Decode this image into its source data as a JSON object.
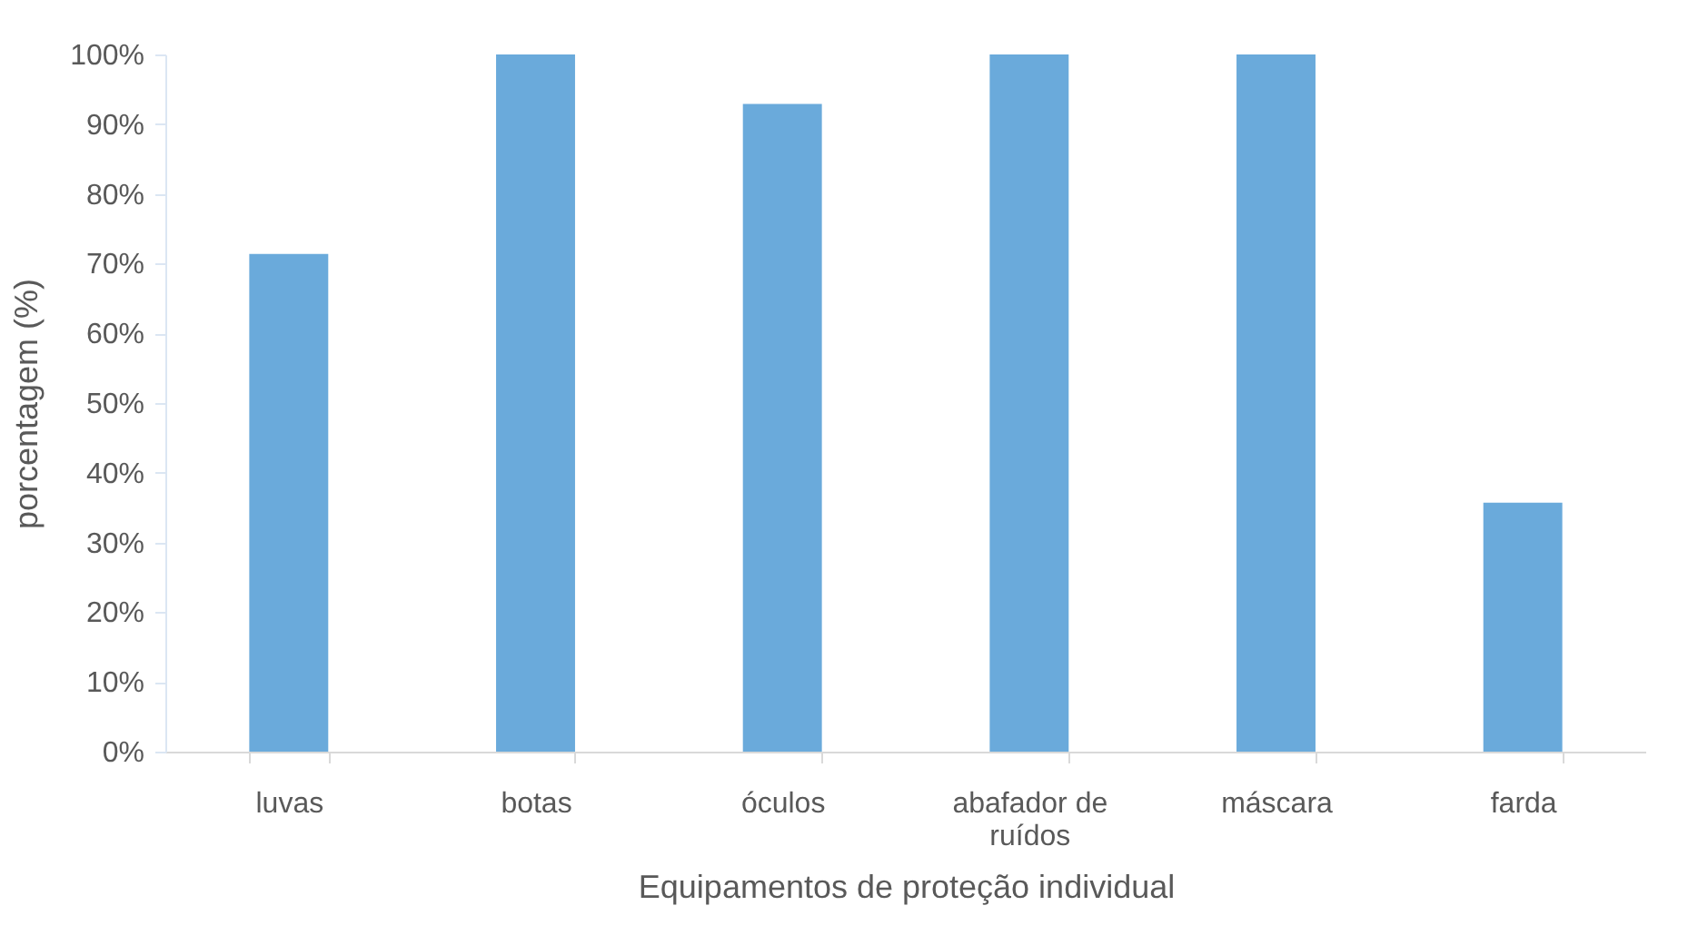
{
  "chart_data": {
    "type": "bar",
    "xlabel": "Equipamentos de proteção individual",
    "ylabel": "porcentagem  (%)",
    "categories": [
      "luvas",
      "botas",
      "óculos",
      "abafador de ruídos",
      "máscara",
      "farda",
      null
    ],
    "values": [
      71.4,
      100,
      92.9,
      100,
      100,
      35.7,
      null
    ],
    "color": "#6aaadb",
    "ylim": [
      0,
      100
    ],
    "yticks": [
      {
        "value": 0,
        "label": "0%"
      },
      {
        "value": 10,
        "label": "10%"
      },
      {
        "value": 20,
        "label": "20%"
      },
      {
        "value": 30,
        "label": "30%"
      },
      {
        "value": 40,
        "label": "40%"
      },
      {
        "value": 50,
        "label": "50%"
      },
      {
        "value": 60,
        "label": "60%"
      },
      {
        "value": 70,
        "label": "70%"
      },
      {
        "value": 80,
        "label": "80%"
      },
      {
        "value": 90,
        "label": "90%"
      },
      {
        "value": 100,
        "label": "100%"
      }
    ],
    "grid": false
  }
}
